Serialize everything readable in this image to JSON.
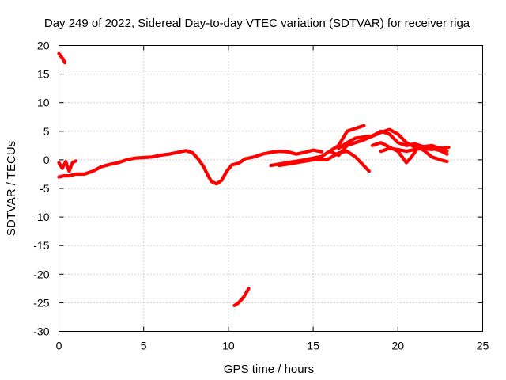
{
  "chart_data": {
    "type": "line",
    "title": "Day 249 of 2022, Sidereal Day-to-day VTEC variation (SDTVAR) for receiver riga",
    "xlabel": "GPS time / hours",
    "ylabel": "SDTVAR / TECUs",
    "xlim": [
      0,
      25
    ],
    "ylim": [
      -30,
      20
    ],
    "xticks": [
      0,
      5,
      10,
      15,
      20,
      25
    ],
    "yticks": [
      -30,
      -25,
      -20,
      -15,
      -10,
      -5,
      0,
      5,
      10,
      15,
      20
    ],
    "grid": true,
    "legend": "none",
    "series_color": "#ff0000",
    "series": [
      {
        "name": "track-start-high",
        "x": [
          0.0,
          0.12,
          0.25,
          0.35
        ],
        "y": [
          18.6,
          18.1,
          17.6,
          17.0
        ]
      },
      {
        "name": "track-main",
        "x": [
          0.0,
          0.3,
          0.6,
          1.0,
          1.5,
          2.0,
          2.5,
          3.0,
          3.5,
          4.0,
          4.5,
          5.0,
          5.5,
          6.0,
          6.5,
          7.0,
          7.5,
          7.9,
          8.2,
          8.5,
          8.8,
          9.0,
          9.3,
          9.6,
          9.9,
          10.2,
          10.6,
          11.0,
          11.5,
          12.0,
          12.5,
          13.0,
          13.5,
          14.0,
          14.5,
          15.0,
          15.5
        ],
        "y": [
          -3.0,
          -2.8,
          -2.8,
          -2.5,
          -2.5,
          -2.0,
          -1.2,
          -0.8,
          -0.5,
          0.0,
          0.3,
          0.4,
          0.5,
          0.8,
          1.0,
          1.3,
          1.6,
          1.2,
          0.2,
          -1.0,
          -2.8,
          -3.8,
          -4.2,
          -3.6,
          -2.0,
          -0.9,
          -0.6,
          0.2,
          0.5,
          1.0,
          1.3,
          1.5,
          1.4,
          1.0,
          1.3,
          1.7,
          1.4
        ]
      },
      {
        "name": "track-early-b",
        "x": [
          0.0,
          0.2,
          0.4,
          0.6,
          0.8,
          1.0
        ],
        "y": [
          -0.5,
          -1.5,
          -0.3,
          -2.0,
          -0.5,
          -0.2
        ]
      },
      {
        "name": "track-dip",
        "x": [
          10.35,
          10.6,
          10.9,
          11.2
        ],
        "y": [
          -25.5,
          -25.0,
          -24.0,
          -22.5
        ]
      },
      {
        "name": "track-evening-a",
        "x": [
          12.5,
          13.5,
          14.5,
          15.5,
          16.5,
          17.0,
          17.5,
          18.0
        ],
        "y": [
          -1.0,
          -0.5,
          0.0,
          0.6,
          2.5,
          5.0,
          5.5,
          6.0
        ]
      },
      {
        "name": "track-evening-b",
        "x": [
          13.0,
          14.0,
          15.0,
          15.8,
          16.5,
          17.0,
          17.5,
          18.3
        ],
        "y": [
          -1.0,
          -0.5,
          0.0,
          0.0,
          1.2,
          1.5,
          0.5,
          -2.0
        ]
      },
      {
        "name": "track-evening-c",
        "x": [
          16.0,
          16.5,
          17.0,
          18.0,
          19.0,
          19.5,
          20.0,
          20.5,
          21.0,
          22.0,
          22.5,
          22.9
        ],
        "y": [
          1.5,
          0.8,
          2.5,
          3.5,
          4.8,
          5.3,
          4.5,
          3.0,
          2.2,
          2.0,
          1.6,
          1.0
        ]
      },
      {
        "name": "track-evening-d",
        "x": [
          16.5,
          17.0,
          17.5,
          18.0,
          18.5,
          19.0,
          19.5,
          20.0,
          20.5,
          21.0,
          21.5,
          22.0,
          22.5,
          23.0
        ],
        "y": [
          2.0,
          3.0,
          3.8,
          4.0,
          4.2,
          5.0,
          4.5,
          3.0,
          2.5,
          2.8,
          2.3,
          2.5,
          2.0,
          2.2
        ]
      },
      {
        "name": "track-evening-e",
        "x": [
          18.5,
          19.0,
          19.5,
          20.0,
          20.5,
          20.8,
          21.2,
          21.6,
          22.0,
          22.5,
          22.9
        ],
        "y": [
          2.5,
          3.0,
          2.2,
          1.5,
          -0.5,
          0.5,
          2.2,
          1.5,
          0.5,
          0.0,
          -0.3
        ]
      },
      {
        "name": "track-evening-f",
        "x": [
          19.0,
          19.5,
          20.0,
          20.5,
          21.0,
          21.5,
          22.0,
          22.5,
          22.9
        ],
        "y": [
          1.5,
          2.0,
          1.8,
          1.5,
          1.8,
          2.0,
          1.8,
          2.1,
          1.5
        ]
      }
    ]
  }
}
